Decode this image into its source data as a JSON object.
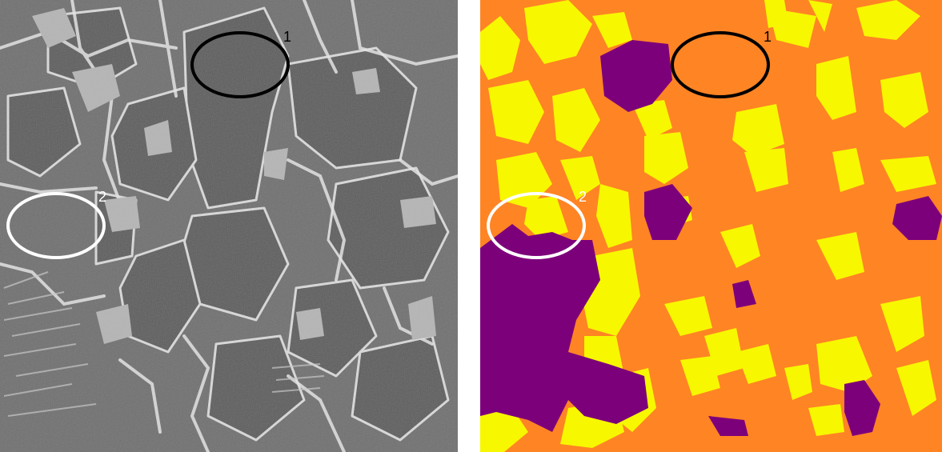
{
  "figure": {
    "left_panel": {
      "kind": "SEM micrograph (grayscale)",
      "markers": [
        {
          "label": "1",
          "ring_color": "#000000"
        },
        {
          "label": "2",
          "ring_color": "#ffffff"
        }
      ]
    },
    "right_panel": {
      "kind": "phase segmentation map",
      "phase_colors": {
        "matrix": "#ff8424",
        "secondary": "#f7f700",
        "third": "#7d007b"
      },
      "markers": [
        {
          "label": "1",
          "ring_color": "#000000"
        },
        {
          "label": "2",
          "ring_color": "#ffffff"
        }
      ]
    }
  }
}
